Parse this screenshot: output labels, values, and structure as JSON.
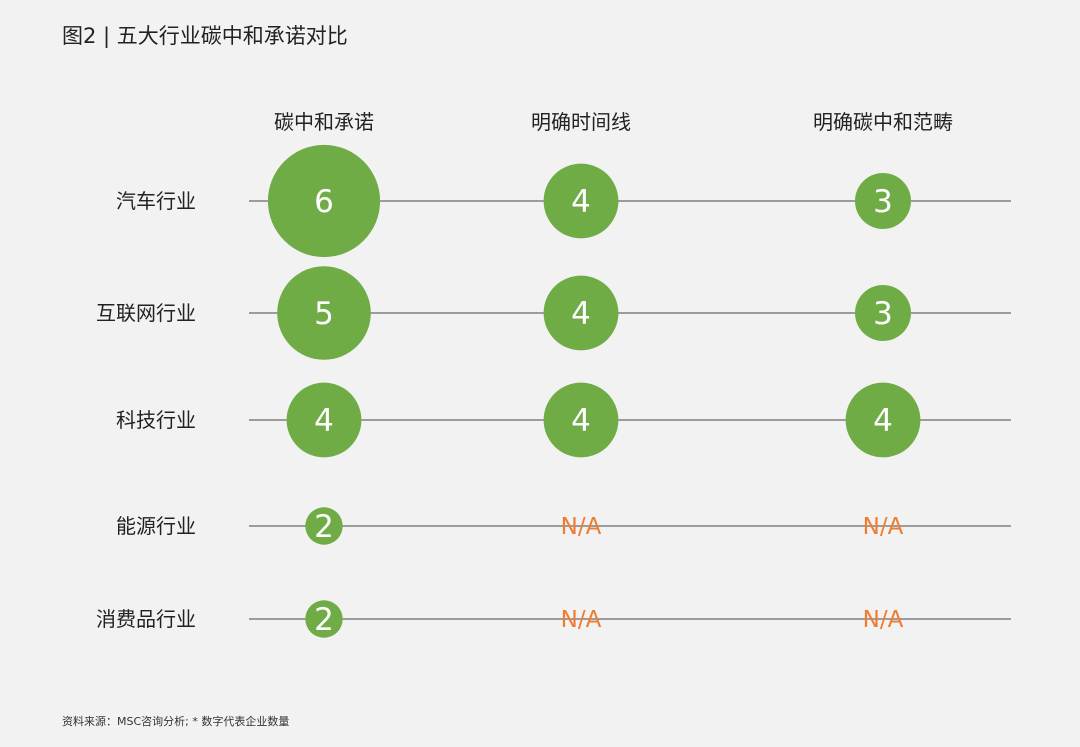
{
  "title": "图2 | 五大行业碳中和承诺对比",
  "source": "资料来源：MSC咨询分析; * 数字代表企业数量",
  "colors": {
    "background": "#f2f2f2",
    "bubble": "#6fac46",
    "bubble_text": "#ffffff",
    "na_text": "#ee7d31",
    "line": "#808080",
    "label_text": "#222222"
  },
  "chart_data": {
    "type": "bubble-matrix",
    "columns": [
      "碳中和承诺",
      "明确时间线",
      "明确碳中和范畴"
    ],
    "rows": [
      "汽车行业",
      "互联网行业",
      "科技行业",
      "能源行业",
      "消费品行业"
    ],
    "values": [
      [
        6,
        4,
        3
      ],
      [
        5,
        4,
        3
      ],
      [
        4,
        4,
        4
      ],
      [
        2,
        null,
        null
      ],
      [
        2,
        null,
        null
      ]
    ],
    "missing_label": "N/A"
  }
}
